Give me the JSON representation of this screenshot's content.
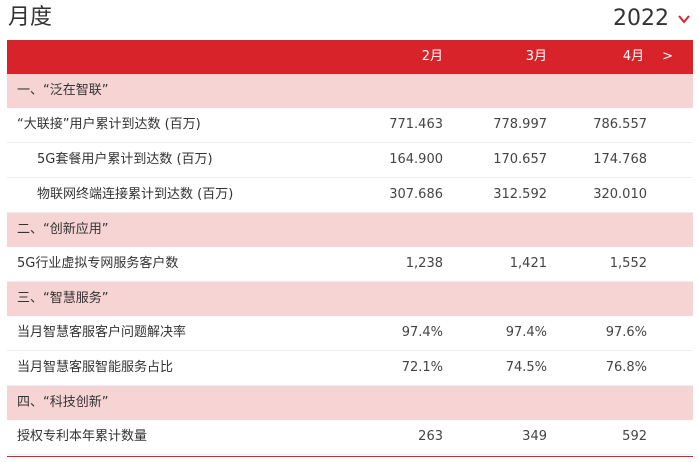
{
  "header": {
    "title": "月度",
    "year": "2022"
  },
  "columns": {
    "months": [
      "2月",
      "3月",
      "4月"
    ],
    "next_label": ">"
  },
  "sections": [
    {
      "title": "一、“泛在智联”",
      "rows": [
        {
          "label": "“大联接”用户累计到达数 (百万)",
          "values": [
            "771.463",
            "778.997",
            "786.557"
          ]
        },
        {
          "label": "5G套餐用户累计到达数 (百万)",
          "values": [
            "164.900",
            "170.657",
            "174.768"
          ]
        },
        {
          "label": "物联网终端连接累计到达数 (百万)",
          "values": [
            "307.686",
            "312.592",
            "320.010"
          ]
        }
      ]
    },
    {
      "title": "二、“创新应用”",
      "rows": [
        {
          "label": "5G行业虚拟专网服务客户数",
          "values": [
            "1,238",
            "1,421",
            "1,552"
          ]
        }
      ]
    },
    {
      "title": "三、“智慧服务”",
      "rows": [
        {
          "label": "当月智慧客服客户问题解决率",
          "values": [
            "97.4%",
            "97.4%",
            "97.6%"
          ]
        },
        {
          "label": "当月智慧客服智能服务占比",
          "values": [
            "72.1%",
            "74.5%",
            "76.8%"
          ]
        }
      ]
    },
    {
      "title": "四、“科技创新”",
      "rows": [
        {
          "label": "授权专利本年累计数量",
          "values": [
            "263",
            "349",
            "592"
          ]
        }
      ]
    }
  ],
  "colors": {
    "accent": "#d8232a",
    "section_bg": "#f6d4d4"
  }
}
